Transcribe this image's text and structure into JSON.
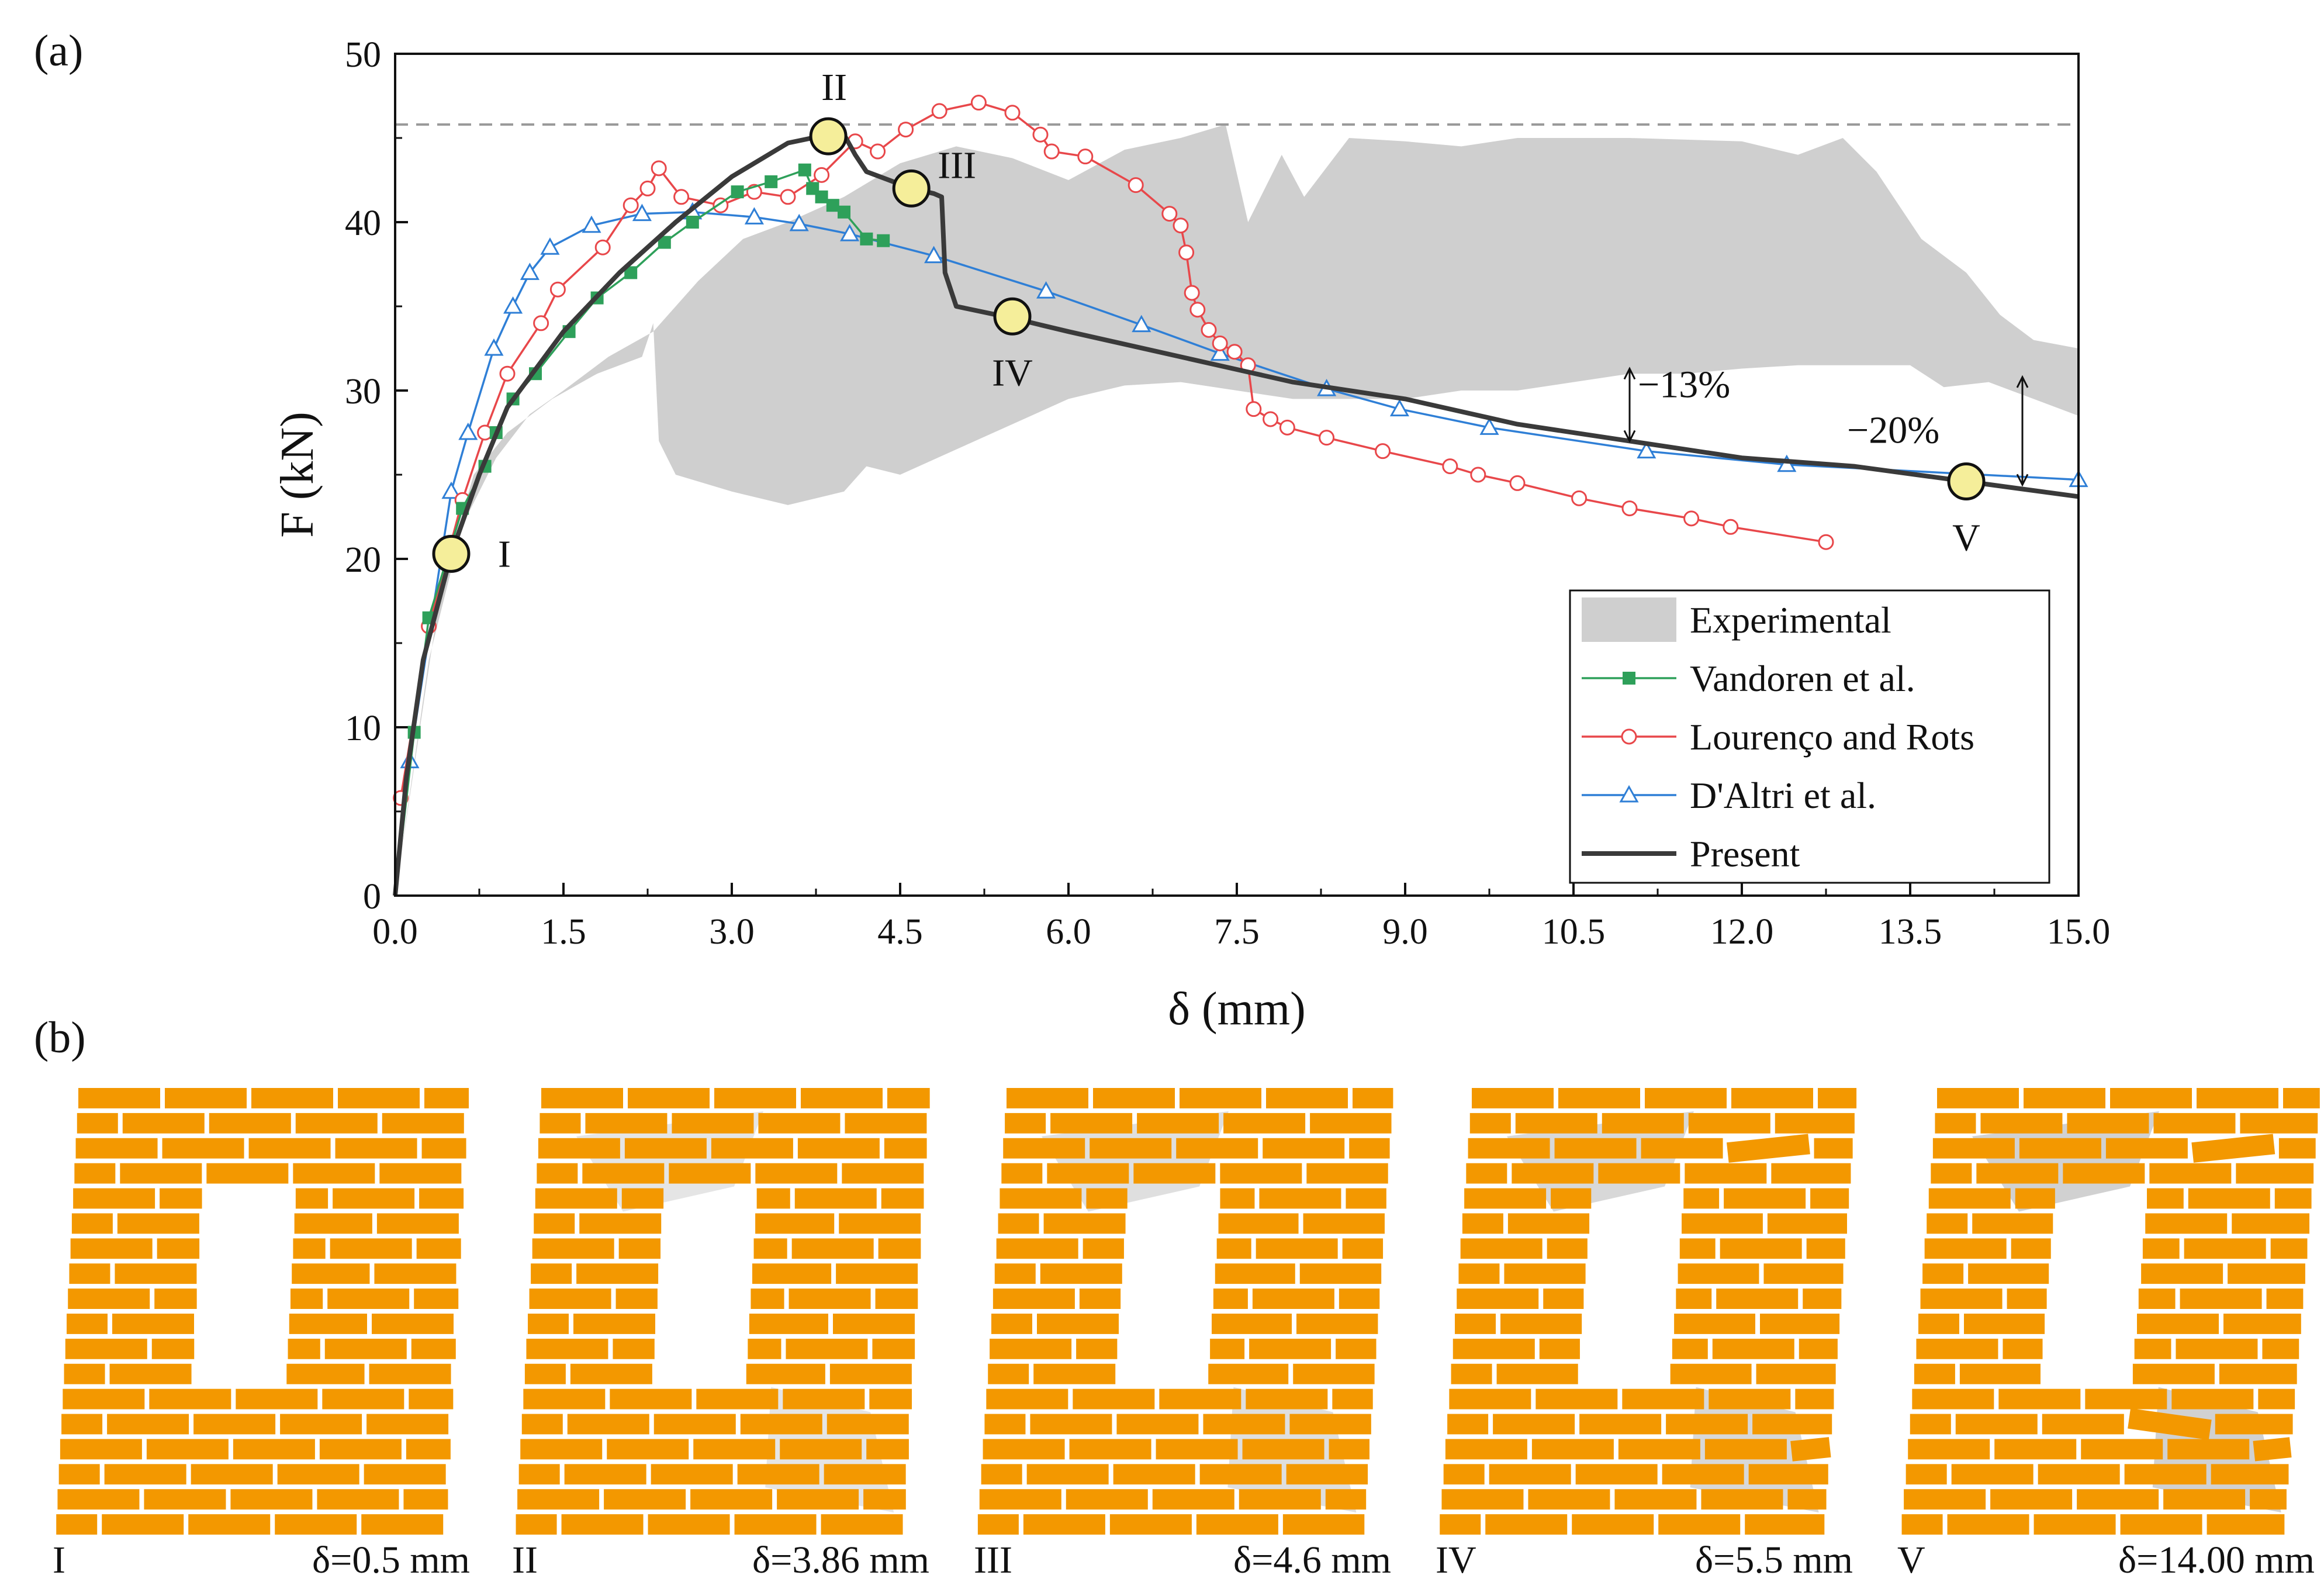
{
  "panel_a_label": "(a)",
  "panel_b_label": "(b)",
  "colors": {
    "experimental": "#cfcfcf",
    "vandoren": "#2ea05a",
    "lourenco": "#e8474a",
    "daltri": "#2f7fd6",
    "present": "#3a3a3a",
    "marker_fill": "#f5ee9a",
    "brick": "#f39800",
    "mortar": "#c8c8c8"
  },
  "chart_data": {
    "type": "line",
    "xlabel": "δ (mm)",
    "ylabel": "F (kN)",
    "xlim": [
      0,
      15
    ],
    "ylim": [
      0,
      50
    ],
    "x_ticks": [
      "0.0",
      "1.5",
      "3.0",
      "4.5",
      "6.0",
      "7.5",
      "9.0",
      "10.5",
      "12.0",
      "13.5",
      "15.0"
    ],
    "y_ticks": [
      "0",
      "10",
      "20",
      "30",
      "40",
      "50"
    ],
    "reference_line_y": 45.8,
    "experimental_band": {
      "name": "Experimental",
      "upper": [
        [
          0,
          0
        ],
        [
          0.3,
          14
        ],
        [
          0.6,
          22
        ],
        [
          0.9,
          26
        ],
        [
          1.2,
          28.6
        ],
        [
          1.5,
          30
        ],
        [
          1.9,
          32
        ],
        [
          2.3,
          33.5
        ],
        [
          2.7,
          36.5
        ],
        [
          3.1,
          39
        ],
        [
          3.5,
          40
        ],
        [
          4.0,
          41.5
        ],
        [
          4.5,
          43.5
        ],
        [
          5.0,
          44.5
        ],
        [
          5.5,
          43.8
        ],
        [
          6.0,
          42.5
        ],
        [
          6.5,
          44.3
        ],
        [
          7.0,
          45
        ],
        [
          7.4,
          45.8
        ],
        [
          7.6,
          40
        ],
        [
          7.9,
          44
        ],
        [
          8.1,
          41.5
        ],
        [
          8.5,
          45
        ],
        [
          9.0,
          44.8
        ],
        [
          9.5,
          44.5
        ],
        [
          10.0,
          45
        ],
        [
          11.0,
          45
        ],
        [
          12.0,
          44.8
        ],
        [
          12.5,
          44
        ],
        [
          12.9,
          45
        ],
        [
          13.2,
          43
        ],
        [
          13.6,
          39
        ],
        [
          14.0,
          37
        ],
        [
          14.3,
          34.5
        ],
        [
          14.6,
          33
        ],
        [
          15.0,
          32.5
        ]
      ],
      "lower": [
        [
          15.0,
          28.5
        ],
        [
          14.6,
          29.5
        ],
        [
          14.2,
          30.5
        ],
        [
          13.8,
          30.2
        ],
        [
          13.5,
          31.5
        ],
        [
          13.0,
          31.5
        ],
        [
          12.5,
          31.5
        ],
        [
          12.0,
          31.3
        ],
        [
          11.5,
          31
        ],
        [
          11.0,
          31
        ],
        [
          10.5,
          30.5
        ],
        [
          10.0,
          30
        ],
        [
          9.5,
          30
        ],
        [
          9.0,
          29.5
        ],
        [
          8.5,
          29.5
        ],
        [
          8.0,
          29.5
        ],
        [
          7.5,
          30
        ],
        [
          7.0,
          30.5
        ],
        [
          6.5,
          30.3
        ],
        [
          6.0,
          29.5
        ],
        [
          5.5,
          28
        ],
        [
          5.0,
          26.5
        ],
        [
          4.5,
          25
        ],
        [
          4.2,
          25.5
        ],
        [
          4.0,
          24
        ],
        [
          3.5,
          23.2
        ],
        [
          3.0,
          24
        ],
        [
          2.5,
          25
        ],
        [
          2.35,
          27
        ],
        [
          2.3,
          34
        ],
        [
          2.2,
          32
        ],
        [
          1.8,
          31
        ],
        [
          1.4,
          29.5
        ],
        [
          1.0,
          27.5
        ],
        [
          0.7,
          25
        ],
        [
          0.4,
          18
        ],
        [
          0.2,
          9
        ],
        [
          0,
          0
        ]
      ]
    },
    "series": [
      {
        "name": "Vandoren et al.",
        "marker": "square",
        "x": [
          0.0,
          0.17,
          0.3,
          0.6,
          0.8,
          0.9,
          1.05,
          1.25,
          1.55,
          1.8,
          2.1,
          2.4,
          2.65,
          3.05,
          3.35,
          3.65,
          3.72,
          3.8,
          3.9,
          4.0,
          4.2,
          4.35
        ],
        "y": [
          0.0,
          9.7,
          16.5,
          23.0,
          25.5,
          27.5,
          29.5,
          31.0,
          33.5,
          35.5,
          37.0,
          38.8,
          40.0,
          41.8,
          42.4,
          43.1,
          42.0,
          41.5,
          41.0,
          40.6,
          39.0,
          38.9
        ]
      },
      {
        "name": "Lourenço and Rots",
        "marker": "circle",
        "x": [
          0.05,
          0.3,
          0.6,
          0.8,
          1.0,
          1.3,
          1.45,
          1.85,
          2.1,
          2.25,
          2.35,
          2.55,
          2.9,
          3.2,
          3.5,
          3.8,
          4.1,
          4.3,
          4.55,
          4.85,
          5.2,
          5.5,
          5.75,
          5.85,
          6.15,
          6.6,
          6.9,
          7.0,
          7.05,
          7.1,
          7.15,
          7.25,
          7.35,
          7.48,
          7.6,
          7.65,
          7.8,
          7.95,
          8.3,
          8.8,
          9.4,
          9.65,
          10.0,
          10.55,
          11.0,
          11.55,
          11.9,
          12.75
        ],
        "y": [
          5.8,
          16.0,
          23.5,
          27.5,
          31.0,
          34.0,
          36.0,
          38.5,
          41.0,
          42.0,
          43.2,
          41.5,
          41.0,
          41.8,
          41.5,
          42.8,
          44.8,
          44.2,
          45.5,
          46.6,
          47.1,
          46.5,
          45.2,
          44.2,
          43.9,
          42.2,
          40.5,
          39.8,
          38.2,
          35.8,
          34.8,
          33.6,
          32.8,
          32.3,
          31.5,
          28.9,
          28.3,
          27.8,
          27.2,
          26.4,
          25.5,
          25.0,
          24.5,
          23.6,
          23.0,
          22.4,
          21.9,
          21.0
        ]
      },
      {
        "name": "D'Altri et al.",
        "marker": "triangle",
        "x": [
          0.13,
          0.5,
          0.65,
          0.88,
          1.05,
          1.2,
          1.38,
          1.75,
          2.2,
          2.65,
          3.2,
          3.6,
          4.05,
          4.8,
          5.8,
          6.65,
          7.35,
          8.3,
          8.95,
          9.75,
          11.15,
          12.4,
          15.0
        ],
        "y": [
          8.0,
          24.0,
          27.5,
          32.5,
          35.0,
          37.0,
          38.5,
          39.8,
          40.5,
          40.6,
          40.3,
          39.9,
          39.3,
          38.0,
          35.9,
          33.9,
          32.2,
          30.1,
          28.9,
          27.8,
          26.4,
          25.6,
          24.7
        ]
      },
      {
        "name": "Present",
        "marker": "none",
        "x": [
          0.0,
          0.1,
          0.25,
          0.5,
          0.75,
          1.0,
          1.5,
          2.0,
          2.5,
          3.0,
          3.5,
          3.86,
          4.0,
          4.1,
          4.2,
          4.6,
          4.8,
          4.87,
          4.9,
          5.0,
          5.5,
          6.0,
          7.0,
          8.0,
          9.0,
          10.0,
          11.0,
          12.0,
          13.0,
          14.0,
          15.0
        ],
        "y": [
          0.0,
          7.0,
          14.0,
          20.3,
          25.0,
          29.0,
          33.5,
          37.0,
          40.0,
          42.7,
          44.7,
          45.2,
          45.2,
          44.0,
          43.0,
          42.0,
          41.7,
          41.5,
          37.0,
          35.0,
          34.3,
          33.5,
          32.0,
          30.5,
          29.5,
          28.0,
          27.0,
          26.0,
          25.5,
          24.6,
          23.7
        ]
      }
    ],
    "stage_points": [
      {
        "label": "I",
        "x": 0.5,
        "y": 20.3
      },
      {
        "label": "II",
        "x": 3.86,
        "y": 45.1
      },
      {
        "label": "III",
        "x": 4.6,
        "y": 42.0
      },
      {
        "label": "IV",
        "x": 5.5,
        "y": 34.4
      },
      {
        "label": "V",
        "x": 14.0,
        "y": 24.6
      }
    ],
    "annotations": [
      {
        "text": "−13%",
        "x": 11.0,
        "y_top": 31.3,
        "y_bottom": 27.0
      },
      {
        "text": "−20%",
        "x": 14.5,
        "y_top": 30.8,
        "y_bottom": 24.4
      }
    ],
    "legend": {
      "position": "bottom-right",
      "entries": [
        "Experimental",
        "Vandoren et al.",
        "Lourenço and Rots",
        "D'Altri et al.",
        "Present"
      ]
    }
  },
  "panels": [
    {
      "stage": "I",
      "caption": "δ=0.5 mm"
    },
    {
      "stage": "II",
      "caption": "δ=3.86 mm"
    },
    {
      "stage": "III",
      "caption": "δ=4.6 mm"
    },
    {
      "stage": "IV",
      "caption": "δ=5.5 mm"
    },
    {
      "stage": "V",
      "caption": "δ=14.00 mm"
    }
  ]
}
